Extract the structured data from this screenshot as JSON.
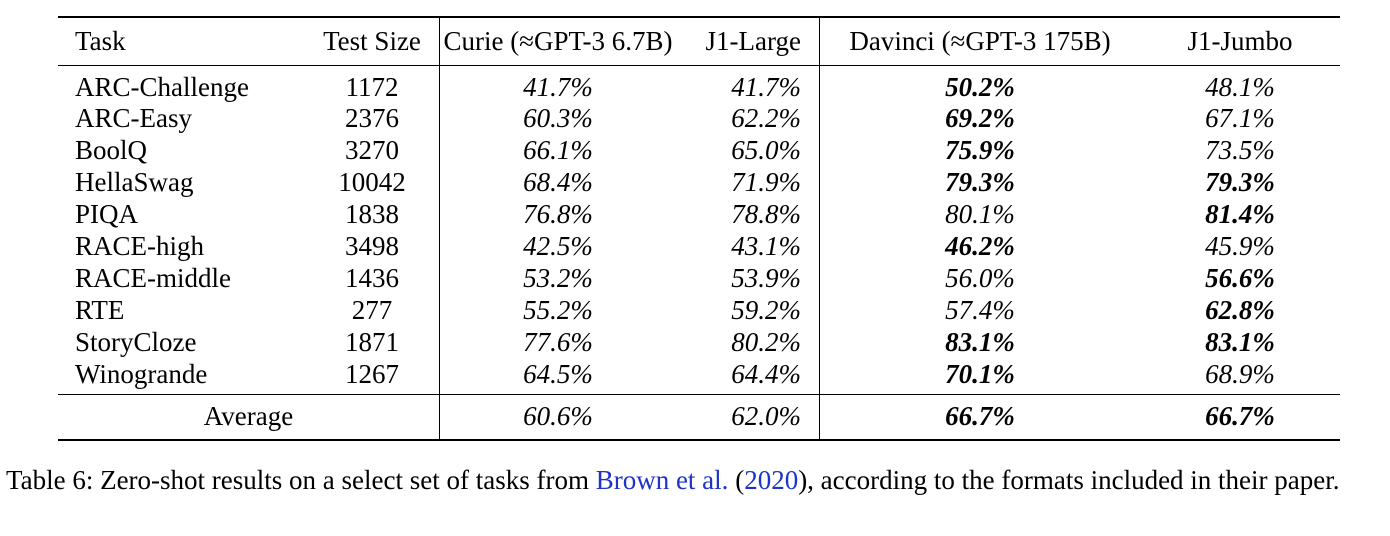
{
  "table": {
    "headers": [
      "Task",
      "Test Size",
      "Curie (≈GPT-3 6.7B)",
      "J1-Large",
      "Davinci (≈GPT-3 175B)",
      "J1-Jumbo"
    ],
    "rows": [
      {
        "task": "ARC-Challenge",
        "size": "1172",
        "curie": "41.7%",
        "j1_large": "41.7%",
        "davinci": "50.2%",
        "j1_jumbo": "48.1%"
      },
      {
        "task": "ARC-Easy",
        "size": "2376",
        "curie": "60.3%",
        "j1_large": "62.2%",
        "davinci": "69.2%",
        "j1_jumbo": "67.1%"
      },
      {
        "task": "BoolQ",
        "size": "3270",
        "curie": "66.1%",
        "j1_large": "65.0%",
        "davinci": "75.9%",
        "j1_jumbo": "73.5%"
      },
      {
        "task": "HellaSwag",
        "size": "10042",
        "curie": "68.4%",
        "j1_large": "71.9%",
        "davinci": "79.3%",
        "j1_jumbo": "79.3%"
      },
      {
        "task": "PIQA",
        "size": "1838",
        "curie": "76.8%",
        "j1_large": "78.8%",
        "davinci": "80.1%",
        "j1_jumbo": "81.4%"
      },
      {
        "task": "RACE-high",
        "size": "3498",
        "curie": "42.5%",
        "j1_large": "43.1%",
        "davinci": "46.2%",
        "j1_jumbo": "45.9%"
      },
      {
        "task": "RACE-middle",
        "size": "1436",
        "curie": "53.2%",
        "j1_large": "53.9%",
        "davinci": "56.0%",
        "j1_jumbo": "56.6%"
      },
      {
        "task": "RTE",
        "size": "277",
        "curie": "55.2%",
        "j1_large": "59.2%",
        "davinci": "57.4%",
        "j1_jumbo": "62.8%"
      },
      {
        "task": "StoryCloze",
        "size": "1871",
        "curie": "77.6%",
        "j1_large": "80.2%",
        "davinci": "83.1%",
        "j1_jumbo": "83.1%"
      },
      {
        "task": "Winogrande",
        "size": "1267",
        "curie": "64.5%",
        "j1_large": "64.4%",
        "davinci": "70.1%",
        "j1_jumbo": "68.9%"
      }
    ],
    "average": {
      "label": "Average",
      "curie": "60.6%",
      "j1_large": "62.0%",
      "davinci": "66.7%",
      "j1_jumbo": "66.7%"
    }
  },
  "caption": {
    "prefix": "Table 6:  Zero-shot results on a select set of tasks from ",
    "cite_author": "Brown et al.",
    "cite_open": " (",
    "cite_year": "2020",
    "suffix": "), according to the formats included in their paper."
  }
}
